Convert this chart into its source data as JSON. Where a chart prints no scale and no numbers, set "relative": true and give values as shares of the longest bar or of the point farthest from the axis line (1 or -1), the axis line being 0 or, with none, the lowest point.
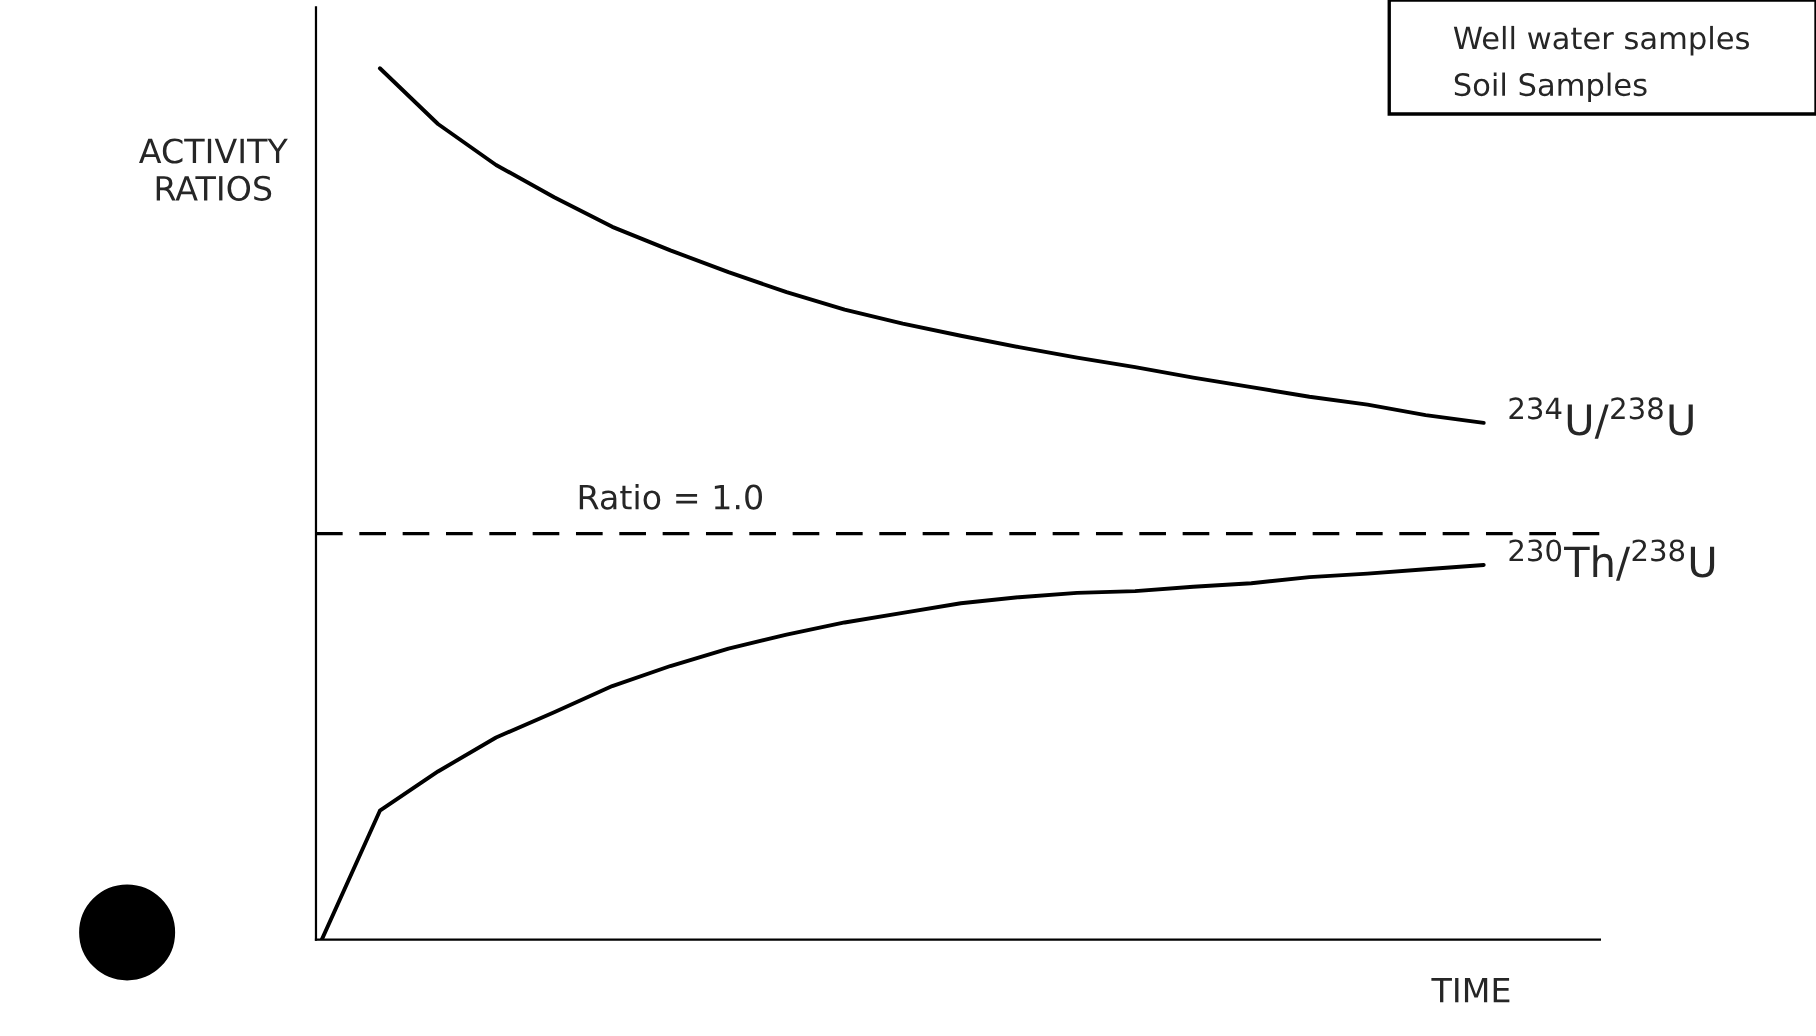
{
  "chart_data": {
    "type": "line",
    "relative": true,
    "xlabel": "TIME",
    "ylabel": "ACTIVITY\nRATIOS",
    "categories": [
      null,
      null,
      null,
      null,
      null,
      null,
      null,
      null,
      null,
      null,
      null,
      null,
      null,
      null,
      null,
      null,
      null,
      null,
      null,
      null,
      null
    ],
    "series": [
      {
        "name": "$^{234}$U/$^{238}$U",
        "color": "#000000",
        "values": [
          null,
          1.0,
          0.936,
          0.889,
          0.852,
          0.818,
          0.791,
          0.766,
          0.743,
          0.723,
          0.707,
          0.693,
          0.68,
          0.668,
          0.657,
          0.645,
          0.634,
          0.623,
          0.614,
          0.602,
          0.593
        ]
      },
      {
        "name": "$^{230}$Th/$^{238}$U",
        "color": "#000000",
        "values": [
          0,
          0.148,
          0.193,
          0.232,
          0.261,
          0.291,
          0.314,
          0.334,
          0.35,
          0.364,
          0.375,
          0.386,
          0.393,
          0.398,
          0.4,
          0.405,
          0.409,
          0.416,
          0.42,
          0.425,
          0.43
        ]
      }
    ],
    "ref_lines": [
      {
        "axis": "y",
        "value": 0.466,
        "color": "#000000",
        "line_style": "dashed"
      }
    ],
    "annotations": [
      "Ratio = 1.0",
      "Well water samples",
      "Soil Samples"
    ],
    "grid": false,
    "line_style": "solid"
  }
}
